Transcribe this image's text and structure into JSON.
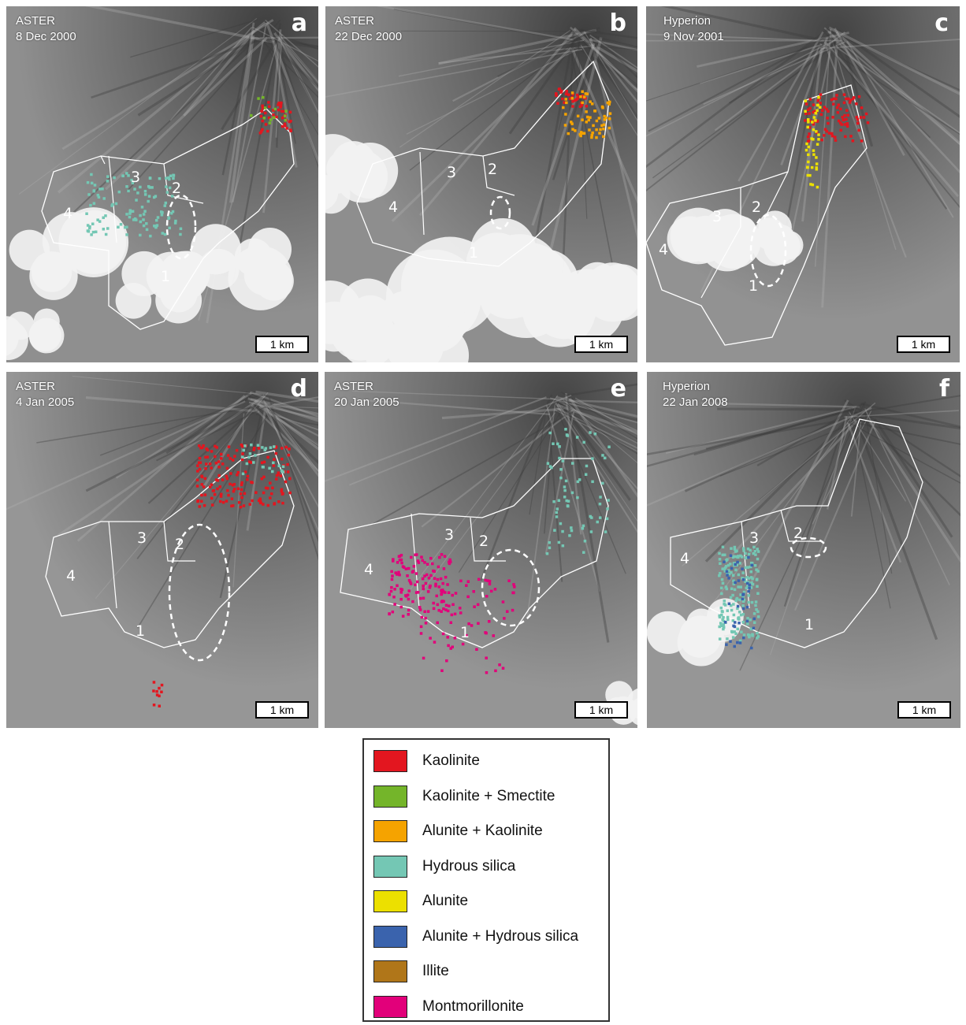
{
  "panels": [
    {
      "id": "a",
      "sensor": "ASTER",
      "date": "8 Dec 2000",
      "letter": "a",
      "scale": "1 km",
      "zones": [
        "1",
        "2",
        "3",
        "4"
      ],
      "minerals": [
        "hydrous-silica",
        "kaolinite",
        "kaolinite-smectite"
      ]
    },
    {
      "id": "b",
      "sensor": "ASTER",
      "date": "22 Dec 2000",
      "letter": "b",
      "scale": "1 km",
      "zones": [
        "1",
        "2",
        "3",
        "4"
      ],
      "minerals": [
        "kaolinite",
        "alunite-kaolinite"
      ]
    },
    {
      "id": "c",
      "sensor": "Hyperion",
      "date": "9 Nov 2001",
      "letter": "c",
      "scale": "1 km",
      "zones": [
        "1",
        "2",
        "3",
        "4"
      ],
      "minerals": [
        "kaolinite",
        "alunite"
      ]
    },
    {
      "id": "d",
      "sensor": "ASTER",
      "date": "4 Jan 2005",
      "letter": "d",
      "scale": "1 km",
      "zones": [
        "1",
        "2",
        "3",
        "4"
      ],
      "minerals": [
        "kaolinite",
        "hydrous-silica"
      ]
    },
    {
      "id": "e",
      "sensor": "ASTER",
      "date": "20 Jan 2005",
      "letter": "e",
      "scale": "1 km",
      "zones": [
        "1",
        "2",
        "3",
        "4"
      ],
      "minerals": [
        "montmorillonite",
        "hydrous-silica"
      ]
    },
    {
      "id": "f",
      "sensor": "Hyperion",
      "date": "22 Jan 2008",
      "letter": "f",
      "scale": "1 km",
      "zones": [
        "1",
        "2",
        "3",
        "4"
      ],
      "minerals": [
        "hydrous-silica",
        "alunite-hydrous-silica"
      ]
    }
  ],
  "legend": [
    {
      "label": "Kaolinite",
      "color": "#e3161f"
    },
    {
      "label": "Kaolinite + Smectite",
      "color": "#74b52a"
    },
    {
      "label": "Alunite + Kaolinite",
      "color": "#f5a300"
    },
    {
      "label": "Hydrous silica",
      "color": "#74c7b4"
    },
    {
      "label": "Alunite",
      "color": "#ece000"
    },
    {
      "label": "Alunite + Hydrous silica",
      "color": "#3a63ad"
    },
    {
      "label": "Illite",
      "color": "#b07619"
    },
    {
      "label": "Montmorillonite",
      "color": "#e2007a"
    }
  ]
}
